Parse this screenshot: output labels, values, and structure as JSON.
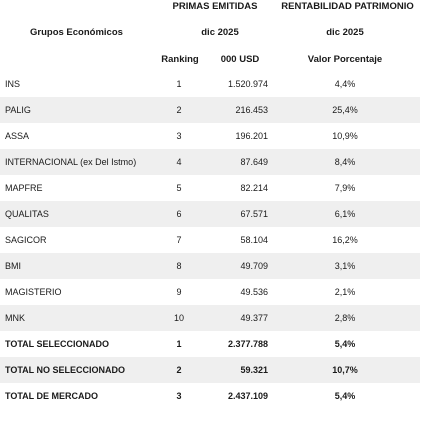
{
  "header": {
    "group_col": "Grupos Económicos",
    "primas_title": "PRIMAS EMITIDAS",
    "rent_title": "RENTABILIDAD PATRIMONIO",
    "primas_period": "dic 2025",
    "rent_period": "dic 2025",
    "ranking_label": "Ranking",
    "usd_label": "000 USD",
    "pct_label": "Valor Porcentaje"
  },
  "rows": [
    {
      "name": "INS",
      "rank": "1",
      "primas": "1.520.974",
      "rent": "4,4%"
    },
    {
      "name": "PALIG",
      "rank": "2",
      "primas": "216.453",
      "rent": "25,4%"
    },
    {
      "name": "ASSA",
      "rank": "3",
      "primas": "196.201",
      "rent": "10,9%"
    },
    {
      "name": "INTERNACIONAL (ex Del Istmo)",
      "rank": "4",
      "primas": "87.649",
      "rent": "8,4%"
    },
    {
      "name": "MAPFRE",
      "rank": "5",
      "primas": "82.214",
      "rent": "7,9%"
    },
    {
      "name": "QUALITAS",
      "rank": "6",
      "primas": "67.571",
      "rent": "6,1%"
    },
    {
      "name": "SAGICOR",
      "rank": "7",
      "primas": "58.104",
      "rent": "16,2%"
    },
    {
      "name": "BMI",
      "rank": "8",
      "primas": "49.709",
      "rent": "3,1%"
    },
    {
      "name": "MAGISTERIO",
      "rank": "9",
      "primas": "49.536",
      "rent": "2,1%"
    },
    {
      "name": "MNK",
      "rank": "10",
      "primas": "49.377",
      "rent": "2,8%"
    }
  ],
  "totals": [
    {
      "name": "TOTAL SELECCIONADO",
      "rank": "1",
      "primas": "2.377.788",
      "rent": "5,4%"
    },
    {
      "name": "TOTAL NO SELECCIONADO",
      "rank": "2",
      "primas": "59.321",
      "rent": "10,7%"
    },
    {
      "name": "TOTAL DE MERCADO",
      "rank": "3",
      "primas": "2.437.109",
      "rent": "5,4%"
    }
  ]
}
